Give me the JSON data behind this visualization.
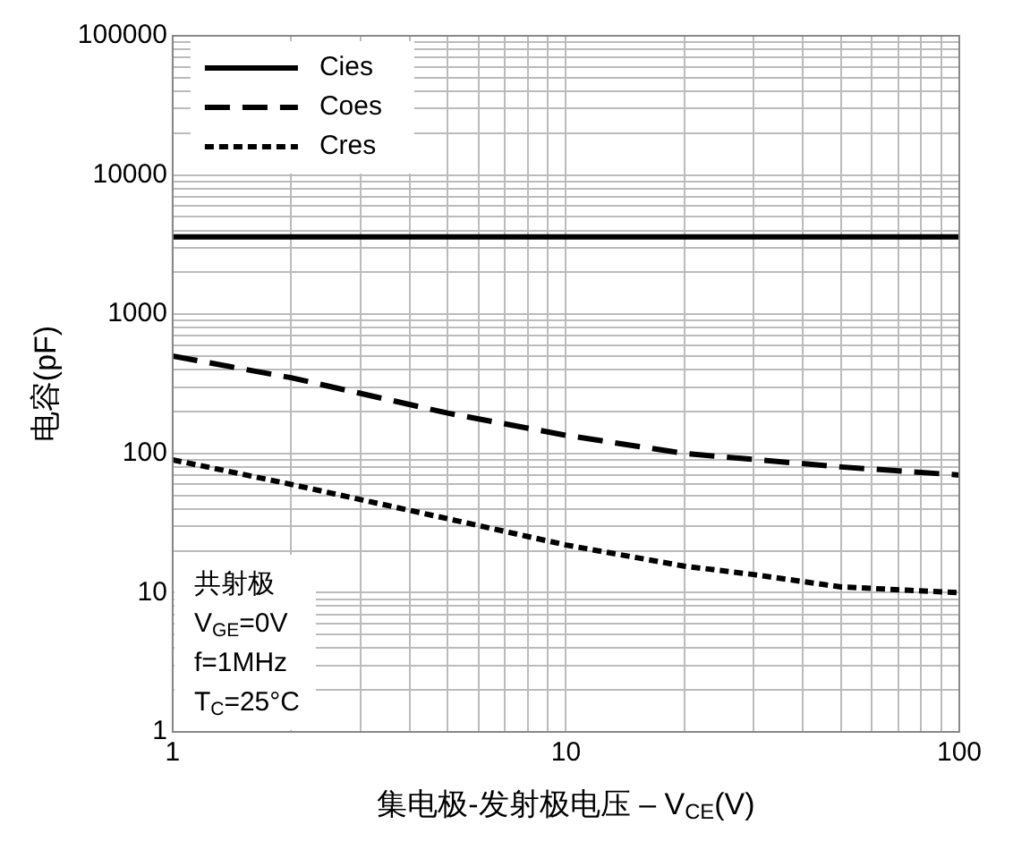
{
  "chart_data": {
    "type": "line",
    "xlabel": "集电极-发射极电压 – V$_{CE}$(V)",
    "ylabel": "电容(pF)",
    "log": "xy",
    "xlim": [
      1,
      100
    ],
    "xticks": [
      1,
      10,
      100
    ],
    "ylim": [
      1,
      100000
    ],
    "yticks": [
      1,
      10,
      100,
      1000,
      10000,
      100000
    ],
    "grid": true,
    "legend": "top left",
    "marker": "none",
    "series": [
      {
        "name": "Cies",
        "color": "#000000",
        "line_style": "solid",
        "x": [
          1,
          100
        ],
        "values": [
          3600,
          3600
        ]
      },
      {
        "name": "Coes",
        "color": "#000000",
        "line_style": "dashed",
        "x": [
          1,
          2,
          5,
          10,
          20,
          50,
          100
        ],
        "values": [
          500,
          350,
          195,
          135,
          100,
          80,
          70
        ]
      },
      {
        "name": "Cres",
        "color": "#000000",
        "line_style": "dotted",
        "x": [
          1,
          2,
          5,
          10,
          20,
          30,
          50,
          100
        ],
        "values": [
          90,
          60,
          34,
          22,
          15.5,
          13.5,
          11,
          10
        ]
      }
    ],
    "annotations": [
      "共射极",
      "V$_{GE}$=0V",
      "f=1MHz",
      "T$_{C}$=25°C"
    ]
  }
}
